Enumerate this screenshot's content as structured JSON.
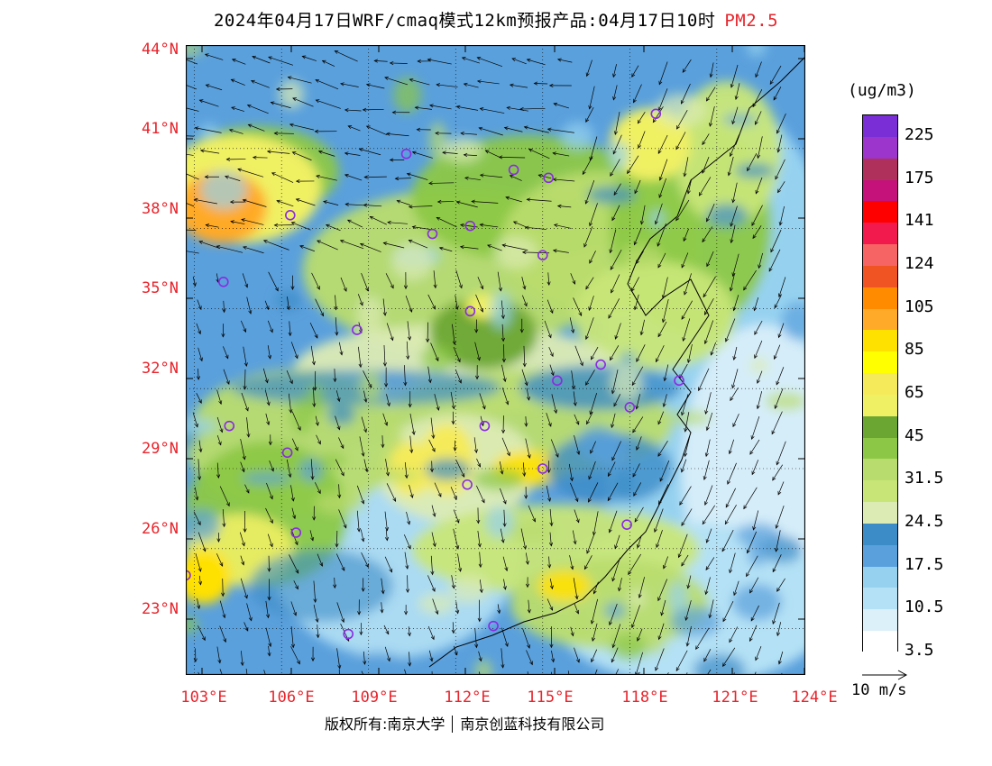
{
  "title": {
    "main": "2024年04月17日WRF/cmaq模式12km预报产品:04月17日10时",
    "species": "PM2.5"
  },
  "axes": {
    "lat_labels": [
      "44°N",
      "41°N",
      "38°N",
      "35°N",
      "32°N",
      "29°N",
      "26°N",
      "23°N"
    ],
    "lon_labels": [
      "103°E",
      "106°E",
      "109°E",
      "112°E",
      "115°E",
      "118°E",
      "121°E",
      "124°E"
    ]
  },
  "colorbar": {
    "unit": "(ug/m3)",
    "colors": [
      "#7a2fd6",
      "#9b35cc",
      "#b0305c",
      "#c4127a",
      "#ff0000",
      "#f21a4c",
      "#f76464",
      "#f05423",
      "#ff8c00",
      "#ffaa28",
      "#ffe100",
      "#ffff00",
      "#f5eb5a",
      "#f0f064",
      "#6ba632",
      "#8cc846",
      "#b9dc6e",
      "#c8e678",
      "#dcebb4",
      "#3c8cc8",
      "#5aa0dc",
      "#96d2f0",
      "#b4e1f5",
      "#dcf0fa",
      "#ffffff"
    ],
    "labels": [
      "225",
      "175",
      "141",
      "124",
      "105",
      "85",
      "65",
      "45",
      "31.5",
      "24.5",
      "17.5",
      "10.5",
      "3.5"
    ]
  },
  "wind_key": "10 m/s",
  "footer": {
    "left": "版权所有:南京大学",
    "right": "南京创蓝科技有限公司"
  },
  "stations": [
    [
      118.9,
      42.3
    ],
    [
      110.3,
      40.8
    ],
    [
      114.0,
      40.2
    ],
    [
      115.2,
      39.9
    ],
    [
      106.3,
      38.5
    ],
    [
      111.2,
      37.8
    ],
    [
      112.5,
      38.1
    ],
    [
      115.0,
      37.0
    ],
    [
      104.0,
      36.0
    ],
    [
      112.5,
      34.9
    ],
    [
      108.6,
      34.2
    ],
    [
      117.0,
      32.9
    ],
    [
      115.5,
      32.3
    ],
    [
      119.7,
      32.3
    ],
    [
      118.0,
      31.3
    ],
    [
      104.2,
      30.6
    ],
    [
      113.0,
      30.6
    ],
    [
      106.2,
      29.6
    ],
    [
      115.0,
      29.0
    ],
    [
      112.4,
      28.4
    ],
    [
      106.5,
      26.6
    ],
    [
      117.9,
      26.9
    ],
    [
      102.7,
      25.0
    ],
    [
      108.3,
      22.8
    ],
    [
      113.3,
      23.1
    ]
  ]
}
